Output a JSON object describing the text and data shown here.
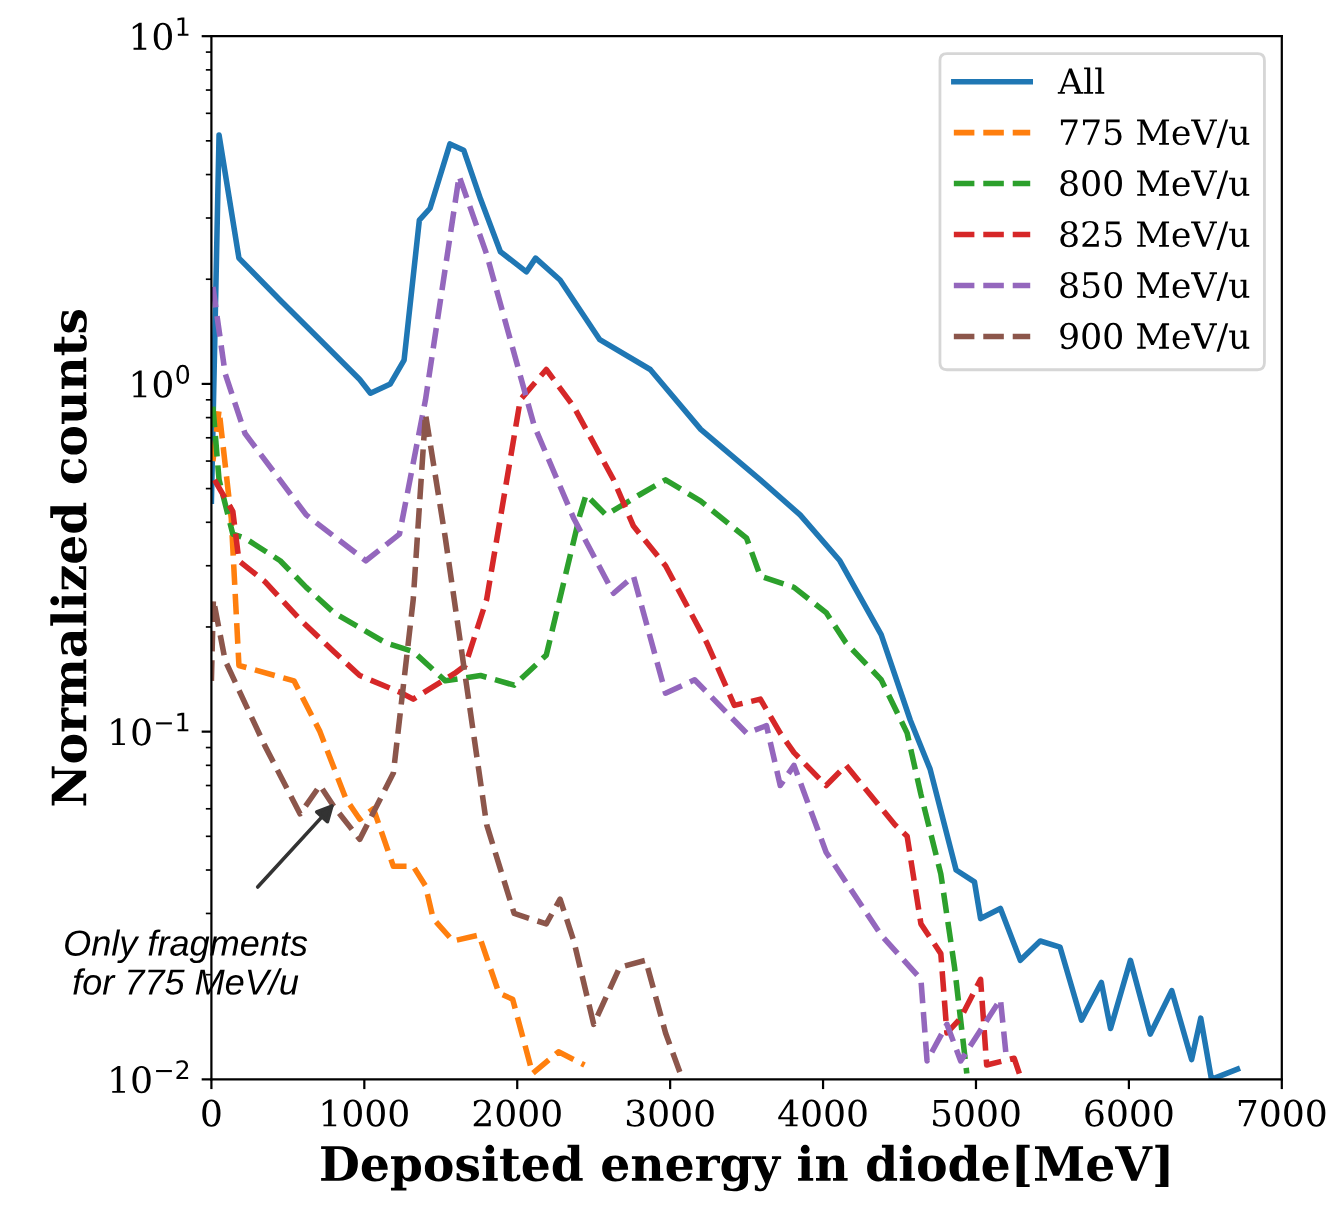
{
  "chart_data": {
    "type": "line",
    "xlabel": "Deposited energy in diode[MeV]",
    "ylabel": "Normalized counts",
    "log": "y",
    "grid": false,
    "legend": "top right",
    "xlim": [
      0,
      7000
    ],
    "xticks": [
      0,
      1000,
      2000,
      3000,
      4000,
      5000,
      6000,
      7000
    ],
    "ylim": [
      0.01,
      10
    ],
    "yticks": [
      {
        "value": 0.01,
        "label": "10$^{−2}$"
      },
      {
        "value": 0.1,
        "label": "10$^{−1}$"
      },
      {
        "value": 1,
        "label": "10$^{0}$"
      },
      {
        "value": 10,
        "label": "10$^{1}$"
      }
    ],
    "annotations": [
      {
        "text": "Only fragments\nfor 775 MeV/u",
        "x": 830,
        "y": 0.064
      }
    ],
    "series": [
      {
        "name": "All",
        "color": "#1f77b4",
        "line_style": "solid",
        "x": [
          0,
          50,
          180,
          450,
          710,
          970,
          1040,
          1170,
          1260,
          1360,
          1430,
          1560,
          1650,
          1760,
          1890,
          2060,
          2120,
          2280,
          2540,
          2870,
          3200,
          3590,
          3850,
          4110,
          4380,
          4570,
          4700,
          4870,
          4990,
          5030,
          5160,
          5290,
          5420,
          5550,
          5690,
          5820,
          5880,
          6010,
          6140,
          6280,
          6410,
          6470,
          6540,
          6710
        ],
        "values": [
          0.46,
          5.2,
          2.3,
          1.74,
          1.34,
          1.03,
          0.94,
          1.0,
          1.17,
          2.96,
          3.2,
          4.9,
          4.7,
          3.4,
          2.4,
          2.1,
          2.3,
          1.99,
          1.34,
          1.1,
          0.74,
          0.53,
          0.42,
          0.31,
          0.19,
          0.108,
          0.078,
          0.04,
          0.037,
          0.029,
          0.031,
          0.022,
          0.025,
          0.024,
          0.0148,
          0.019,
          0.014,
          0.022,
          0.0135,
          0.018,
          0.0114,
          0.015,
          0.01,
          0.0107
        ]
      },
      {
        "name": "775 MeV/u",
        "color": "#ff7f0e",
        "line_style": "dashed",
        "x": [
          10,
          50,
          130,
          180,
          540,
          710,
          880,
          970,
          1060,
          1190,
          1320,
          1400,
          1450,
          1580,
          1750,
          1880,
          1970,
          2100,
          2270,
          2440
        ],
        "values": [
          0.6,
          0.84,
          0.41,
          0.155,
          0.14,
          0.1,
          0.064,
          0.056,
          0.06,
          0.041,
          0.041,
          0.036,
          0.029,
          0.025,
          0.026,
          0.0177,
          0.017,
          0.0104,
          0.012,
          0.011
        ]
      },
      {
        "name": "800 MeV/u",
        "color": "#2ca02c",
        "line_style": "dashed",
        "x": [
          10,
          50,
          140,
          220,
          450,
          620,
          800,
          1140,
          1320,
          1530,
          1760,
          1980,
          2190,
          2410,
          2450,
          2580,
          2800,
          2970,
          3200,
          3500,
          3590,
          3810,
          4020,
          4150,
          4380,
          4550,
          4640,
          4770,
          4860,
          4940
        ],
        "values": [
          0.86,
          0.53,
          0.37,
          0.36,
          0.31,
          0.26,
          0.22,
          0.18,
          0.17,
          0.14,
          0.145,
          0.136,
          0.166,
          0.42,
          0.48,
          0.42,
          0.48,
          0.53,
          0.46,
          0.36,
          0.28,
          0.26,
          0.22,
          0.18,
          0.141,
          0.099,
          0.066,
          0.039,
          0.021,
          0.0104
        ]
      },
      {
        "name": "825 MeV/u",
        "color": "#d62728",
        "line_style": "dashed",
        "x": [
          20,
          140,
          180,
          350,
          580,
          800,
          970,
          1230,
          1320,
          1590,
          1660,
          1800,
          2020,
          2190,
          2370,
          2630,
          2760,
          2970,
          3240,
          3420,
          3590,
          3720,
          3810,
          4020,
          4150,
          4470,
          4550,
          4640,
          4770,
          4810,
          4900,
          5030,
          5070,
          5250,
          5290
        ],
        "values": [
          0.53,
          0.43,
          0.31,
          0.27,
          0.21,
          0.17,
          0.145,
          0.13,
          0.124,
          0.147,
          0.155,
          0.24,
          0.9,
          1.1,
          0.86,
          0.53,
          0.39,
          0.3,
          0.18,
          0.119,
          0.124,
          0.099,
          0.087,
          0.07,
          0.08,
          0.054,
          0.05,
          0.028,
          0.023,
          0.0136,
          0.015,
          0.0194,
          0.011,
          0.0115,
          0.0102
        ]
      },
      {
        "name": "850 MeV/u",
        "color": "#9467bd",
        "line_style": "dashed",
        "x": [
          10,
          90,
          220,
          620,
          1010,
          1230,
          1400,
          1620,
          1800,
          2110,
          2370,
          2630,
          2760,
          2970,
          3160,
          3500,
          3630,
          3720,
          3810,
          4020,
          4380,
          4640,
          4680,
          4810,
          4900,
          5160,
          5200
        ],
        "values": [
          1.9,
          1.07,
          0.72,
          0.42,
          0.31,
          0.37,
          0.9,
          3.96,
          2.36,
          0.76,
          0.41,
          0.25,
          0.28,
          0.129,
          0.141,
          0.099,
          0.104,
          0.07,
          0.08,
          0.045,
          0.026,
          0.0194,
          0.0113,
          0.0144,
          0.0113,
          0.017,
          0.0114
        ]
      },
      {
        "name": "900 MeV/u",
        "color": "#8c564b",
        "line_style": "dashed",
        "x": [
          0,
          13,
          90,
          350,
          580,
          710,
          800,
          970,
          1190,
          1320,
          1400,
          1530,
          1800,
          1980,
          2190,
          2280,
          2370,
          2500,
          2670,
          2840,
          2970,
          3070
        ],
        "values": [
          0.14,
          0.24,
          0.16,
          0.091,
          0.058,
          0.07,
          0.061,
          0.049,
          0.076,
          0.24,
          0.82,
          0.36,
          0.054,
          0.03,
          0.028,
          0.033,
          0.025,
          0.0144,
          0.021,
          0.022,
          0.0136,
          0.0103
        ]
      }
    ]
  }
}
